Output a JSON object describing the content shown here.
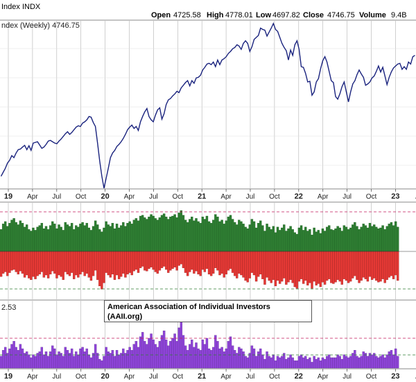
{
  "header": {
    "open_label": "Open",
    "open_value": "4725.58",
    "high_label": "High",
    "high_value": "4778.01",
    "low_label": "Low",
    "low_value": "4697.82",
    "close_label": "Close",
    "close_value": "4746.75",
    "volume_label": "Volume",
    "volume_value": "9.4B",
    "symbol_partial": "Index INDX"
  },
  "price_panel_label": "ndex (Weekly) 4746.75",
  "sentiment_panel_label": "2.53",
  "annotation": {
    "line1": "American Association of Individual Investors",
    "line2": "(AAII.org)"
  },
  "x_ticks": [
    {
      "label": "19",
      "bold": true
    },
    {
      "label": "Apr",
      "bold": false
    },
    {
      "label": "Jul",
      "bold": false
    },
    {
      "label": "Oct",
      "bold": false
    },
    {
      "label": "20",
      "bold": true
    },
    {
      "label": "Apr",
      "bold": false
    },
    {
      "label": "Jul",
      "bold": false
    },
    {
      "label": "Oct",
      "bold": false
    },
    {
      "label": "21",
      "bold": true
    },
    {
      "label": "Apr",
      "bold": false
    },
    {
      "label": "Jul",
      "bold": false
    },
    {
      "label": "Oct",
      "bold": false
    },
    {
      "label": "22",
      "bold": true
    },
    {
      "label": "Apr",
      "bold": false
    },
    {
      "label": "Jul",
      "bold": false
    },
    {
      "label": "Oct",
      "bold": false
    },
    {
      "label": "23",
      "bold": true
    },
    {
      "label": "Ap",
      "bold": false
    }
  ],
  "colors": {
    "price_line": "#1a237e",
    "bull_bar": "#2e7d32",
    "bull_edge": "#1b5e20",
    "bear_bar": "#e53935",
    "bear_edge": "#8e1c1c",
    "ratio_bar": "#8e44d8",
    "ratio_edge": "#5b2a8f",
    "grid": "#b0b0b0",
    "ref_magenta": "#c2185b",
    "ref_green": "#2e7d32"
  },
  "chart_data": [
    {
      "type": "line",
      "series": [
        {
          "values": [
            2480,
            2540,
            2600,
            2680,
            2720,
            2790,
            2760,
            2830,
            2880,
            2890,
            2920,
            2945,
            2880,
            2940,
            2870,
            2980,
            2990,
            3000,
            2950,
            2900,
            2920,
            2960,
            3010,
            3020,
            3000,
            2980,
            2970,
            3010,
            3040,
            3080,
            3120,
            3150,
            3110,
            3140,
            3180,
            3220,
            3240,
            3230,
            3280,
            3300,
            3330,
            3380,
            3370,
            3290,
            3230,
            2980,
            2710,
            2480,
            2300,
            2450,
            2600,
            2760,
            2830,
            2870,
            2930,
            2960,
            3000,
            3050,
            3110,
            3180,
            3220,
            3250,
            3200,
            3230,
            3170,
            3300,
            3380,
            3450,
            3500,
            3380,
            3330,
            3300,
            3400,
            3480,
            3510,
            3340,
            3420,
            3560,
            3630,
            3650,
            3690,
            3720,
            3760,
            3740,
            3810,
            3850,
            3890,
            3920,
            3840,
            3920,
            3880,
            3960,
            3970,
            4000,
            4080,
            4120,
            4170,
            4180,
            4160,
            4200,
            4130,
            4230,
            4160,
            4230,
            4250,
            4280,
            4330,
            4360,
            4400,
            4420,
            4460,
            4440,
            4390,
            4480,
            4520,
            4480,
            4360,
            4430,
            4540,
            4570,
            4600,
            4710,
            4690,
            4680,
            4590,
            4650,
            4710,
            4780,
            4690,
            4660,
            4570,
            4480,
            4420,
            4370,
            4230,
            4380,
            4300,
            4460,
            4520,
            4390,
            4130,
            4120,
            4030,
            3900,
            3910,
            3700,
            3750,
            3900,
            3950,
            4100,
            4220,
            4280,
            4200,
            4060,
            3920,
            3890,
            3680,
            3640,
            3720,
            3830,
            3900,
            3750,
            3600,
            3750,
            3870,
            3920,
            4010,
            4080,
            4020,
            3970,
            3850,
            3870,
            3900,
            3960,
            3990,
            4060,
            4140,
            4050,
            4120,
            3990,
            3860,
            3970,
            4050,
            4110,
            4140,
            4170,
            4180,
            4090,
            4130,
            4090,
            4200,
            4170,
            4280,
            4300
          ],
          "name": ""
        }
      ],
      "ylim": [
        2300,
        4820
      ],
      "start_date": "2018-12-21",
      "x_label_units": "weekly"
    },
    {
      "type": "bar",
      "title": "",
      "series": [
        {
          "name": "",
          "values": [
            28,
            35,
            38,
            32,
            36,
            40,
            42,
            37,
            34,
            39,
            36,
            31,
            34,
            28,
            26,
            30,
            27,
            31,
            33,
            36,
            29,
            32,
            28,
            33,
            38,
            35,
            29,
            34,
            31,
            27,
            37,
            34,
            32,
            36,
            28,
            33,
            31,
            35,
            37,
            33,
            36,
            30,
            27,
            32,
            39,
            34,
            28,
            25,
            30,
            38,
            34,
            32,
            36,
            29,
            35,
            30,
            33,
            37,
            32,
            36,
            38,
            35,
            40,
            42,
            39,
            45,
            46,
            43,
            41,
            44,
            47,
            45,
            42,
            40,
            43,
            46,
            48,
            44,
            41,
            44,
            45,
            47,
            43,
            49,
            52,
            46,
            40,
            37,
            41,
            44,
            39,
            42,
            38,
            36,
            44,
            41,
            45,
            38,
            36,
            40,
            47,
            44,
            38,
            40,
            35,
            39,
            44,
            46,
            41,
            37,
            34,
            40,
            38,
            35,
            31,
            29,
            34,
            41,
            38,
            30,
            36,
            39,
            33,
            26,
            35,
            31,
            28,
            32,
            24,
            31,
            27,
            30,
            34,
            26,
            29,
            32,
            28,
            24,
            22,
            30,
            33,
            27,
            31,
            26,
            28,
            21,
            30,
            25,
            27,
            23,
            29,
            26,
            31,
            33,
            28,
            27,
            29,
            32,
            30,
            26,
            33,
            31,
            28,
            30,
            34,
            37,
            32,
            28,
            31,
            35,
            33,
            30,
            36,
            32,
            34,
            31,
            29,
            30,
            33,
            28,
            32,
            35,
            37,
            33,
            38,
            31
          ]
        },
        {
          "name": "",
          "values": [
            32,
            28,
            26,
            31,
            27,
            24,
            23,
            26,
            29,
            25,
            28,
            33,
            30,
            34,
            36,
            32,
            35,
            31,
            29,
            26,
            33,
            30,
            34,
            29,
            25,
            28,
            34,
            30,
            32,
            36,
            26,
            29,
            31,
            27,
            35,
            30,
            33,
            29,
            26,
            31,
            28,
            33,
            37,
            31,
            24,
            36,
            44,
            48,
            40,
            27,
            30,
            33,
            29,
            36,
            30,
            35,
            32,
            28,
            33,
            29,
            27,
            30,
            25,
            23,
            27,
            21,
            19,
            24,
            25,
            22,
            20,
            23,
            26,
            28,
            24,
            21,
            19,
            23,
            27,
            24,
            22,
            20,
            24,
            18,
            16,
            21,
            27,
            31,
            26,
            23,
            28,
            25,
            29,
            31,
            23,
            26,
            22,
            29,
            31,
            28,
            21,
            24,
            30,
            28,
            33,
            29,
            24,
            22,
            27,
            31,
            34,
            28,
            30,
            33,
            37,
            39,
            34,
            27,
            30,
            38,
            32,
            29,
            35,
            42,
            33,
            37,
            40,
            36,
            44,
            37,
            41,
            38,
            34,
            42,
            39,
            36,
            40,
            45,
            47,
            38,
            35,
            41,
            37,
            43,
            40,
            47,
            38,
            43,
            41,
            45,
            39,
            42,
            37,
            35,
            40,
            41,
            39,
            36,
            38,
            42,
            35,
            37,
            40,
            38,
            34,
            31,
            36,
            40,
            37,
            33,
            35,
            38,
            32,
            36,
            34,
            37,
            39,
            38,
            35,
            40,
            36,
            33,
            31,
            35,
            30,
            37
          ]
        }
      ],
      "reference_lines": [
        "magenta dashed (upper)",
        "green dashed (lower)"
      ]
    },
    {
      "type": "bar",
      "title": "",
      "series": [
        {
          "name": "",
          "values": [
            0.8,
            1.2,
            1.4,
            1.0,
            1.3,
            1.6,
            1.8,
            1.4,
            1.2,
            1.6,
            1.3,
            1.0,
            1.1,
            0.9,
            0.7,
            0.9,
            0.8,
            1.0,
            1.1,
            1.4,
            0.9,
            1.1,
            0.8,
            1.1,
            1.5,
            1.3,
            0.9,
            1.1,
            1.0,
            0.8,
            1.4,
            1.2,
            1.0,
            1.3,
            0.8,
            1.1,
            0.9,
            1.3,
            1.4,
            1.1,
            1.3,
            0.9,
            0.7,
            1.0,
            1.6,
            1.0,
            0.6,
            0.5,
            0.8,
            1.4,
            1.1,
            1.0,
            1.2,
            0.8,
            1.2,
            0.9,
            1.0,
            1.3,
            1.0,
            1.2,
            1.4,
            1.2,
            1.6,
            1.8,
            1.4,
            2.1,
            2.4,
            1.8,
            1.6,
            2.0,
            2.3,
            1.9,
            1.6,
            1.4,
            1.8,
            2.2,
            2.5,
            1.9,
            1.5,
            1.8,
            2.0,
            2.3,
            1.8,
            2.7,
            3.2,
            2.2,
            1.5,
            1.2,
            1.6,
            1.9,
            1.4,
            1.7,
            1.3,
            1.2,
            1.9,
            1.6,
            2.0,
            1.3,
            1.2,
            1.4,
            2.2,
            1.8,
            1.3,
            1.4,
            1.1,
            1.3,
            1.8,
            2.1,
            1.5,
            1.2,
            1.0,
            1.4,
            1.3,
            1.1,
            0.8,
            0.7,
            1.0,
            1.5,
            1.3,
            0.8,
            1.1,
            1.3,
            0.9,
            0.6,
            1.1,
            0.8,
            0.7,
            0.9,
            0.5,
            0.8,
            0.7,
            0.8,
            1.0,
            0.6,
            0.7,
            0.9,
            0.7,
            0.5,
            0.5,
            0.8,
            0.9,
            0.7,
            0.8,
            0.6,
            0.7,
            0.4,
            0.8,
            0.6,
            0.7,
            0.5,
            0.7,
            0.6,
            0.8,
            0.9,
            0.7,
            0.7,
            0.7,
            0.9,
            0.8,
            0.6,
            0.9,
            0.8,
            0.7,
            0.8,
            1.0,
            1.2,
            0.8,
            0.7,
            0.8,
            1.1,
            1.0,
            0.8,
            1.0,
            0.9,
            1.0,
            0.8,
            0.7,
            0.8,
            0.9,
            0.7,
            0.9,
            1.1,
            1.2,
            0.9,
            1.3,
            0.8
          ]
        }
      ],
      "ylim": [
        0,
        3.3
      ],
      "reference_lines": [
        "magenta dashed (upper)",
        "green dashed (lower)"
      ]
    }
  ]
}
